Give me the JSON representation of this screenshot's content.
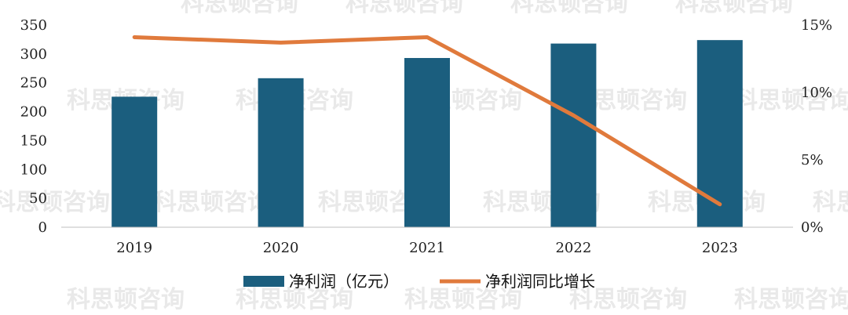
{
  "chart_data": {
    "type": "bar",
    "categories": [
      "2019",
      "2020",
      "2021",
      "2022",
      "2023"
    ],
    "series": [
      {
        "name": "净利润（亿元）",
        "type": "bar",
        "axis": "left",
        "color": "#1b5e7e",
        "values": [
          226,
          258,
          293,
          318,
          324
        ]
      },
      {
        "name": "净利润同比增长",
        "type": "line",
        "axis": "right",
        "color": "#e07a3c",
        "values": [
          14.1,
          13.7,
          14.1,
          8.3,
          1.7
        ]
      }
    ],
    "y_left": {
      "min": 0,
      "max": 350,
      "ticks": [
        "0",
        "50",
        "100",
        "150",
        "200",
        "250",
        "300",
        "350"
      ]
    },
    "y_right": {
      "min": 0,
      "max": 15,
      "ticks": [
        "0%",
        "5%",
        "10%",
        "15%"
      ]
    },
    "grid": false,
    "legend_position": "bottom"
  },
  "watermark": "科思顿咨询"
}
